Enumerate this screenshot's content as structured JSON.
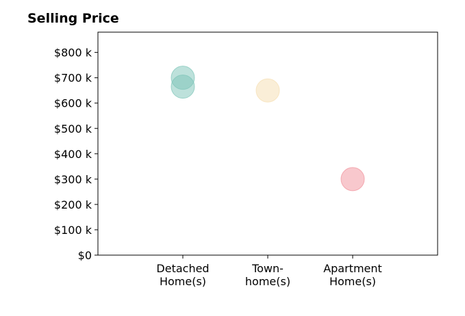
{
  "chart_data": {
    "type": "scatter",
    "title": "Selling Price",
    "xlabel": "",
    "ylabel": "",
    "categories": [
      [
        "Detached",
        "Home(s)"
      ],
      [
        "Town-",
        "home(s)"
      ],
      [
        "Apartment",
        "Home(s)"
      ]
    ],
    "y_ticks": [
      0,
      100,
      200,
      300,
      400,
      500,
      600,
      700,
      800
    ],
    "y_tick_labels": [
      "$0",
      "$100 k",
      "$200 k",
      "$300 k",
      "$400 k",
      "$500 k",
      "$600 k",
      "$700 k",
      "$800 k"
    ],
    "ylim": [
      0,
      880
    ],
    "xlim": [
      -1,
      3
    ],
    "grid": false,
    "points": [
      {
        "category": 0,
        "y": 700,
        "color": "#7cc4b8"
      },
      {
        "category": 0,
        "y": 665,
        "color": "#7cc4b8"
      },
      {
        "category": 1,
        "y": 650,
        "color": "#f5deb0"
      },
      {
        "category": 2,
        "y": 300,
        "color": "#f1929b"
      }
    ]
  }
}
